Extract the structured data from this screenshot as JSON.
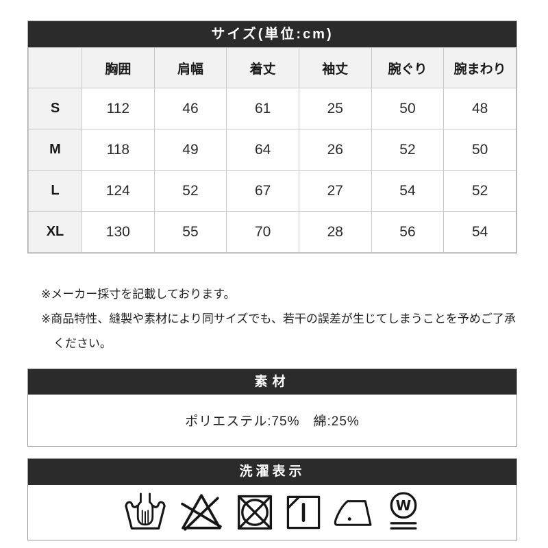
{
  "size_table": {
    "title": "サイズ(単位:cm)",
    "columns": [
      "胸囲",
      "肩幅",
      "着丈",
      "袖丈",
      "腕ぐり",
      "腕まわり"
    ],
    "rows": [
      {
        "size": "S",
        "values": [
          "112",
          "46",
          "61",
          "25",
          "50",
          "48"
        ]
      },
      {
        "size": "M",
        "values": [
          "118",
          "49",
          "64",
          "26",
          "52",
          "50"
        ]
      },
      {
        "size": "L",
        "values": [
          "124",
          "52",
          "67",
          "27",
          "54",
          "52"
        ]
      },
      {
        "size": "XL",
        "values": [
          "130",
          "55",
          "70",
          "28",
          "56",
          "54"
        ]
      }
    ]
  },
  "notes": [
    "※メーカー採寸を記載しております。",
    "※商品特性、縫製や素材により同サイズでも、若干の誤差が生じてしまうことを予めご了承ください。"
  ],
  "material": {
    "title": "素材",
    "composition": "ポリエステル:75%　綿:25%"
  },
  "laundry": {
    "title": "洗濯表示",
    "symbols": [
      {
        "name": "hand-wash-icon"
      },
      {
        "name": "do-not-bleach-icon"
      },
      {
        "name": "do-not-tumble-dry-icon"
      },
      {
        "name": "drip-dry-in-shade-icon"
      },
      {
        "name": "iron-low-temp-icon"
      },
      {
        "name": "wet-clean-very-gentle-icon"
      }
    ]
  },
  "colors": {
    "bar_bg": "#2b2b2b",
    "bar_text": "#ffffff",
    "header_cell_bg": "#f2f2f2",
    "table_border": "#c9c9c9",
    "section_border": "#949494",
    "icon_stroke": "#161616"
  }
}
